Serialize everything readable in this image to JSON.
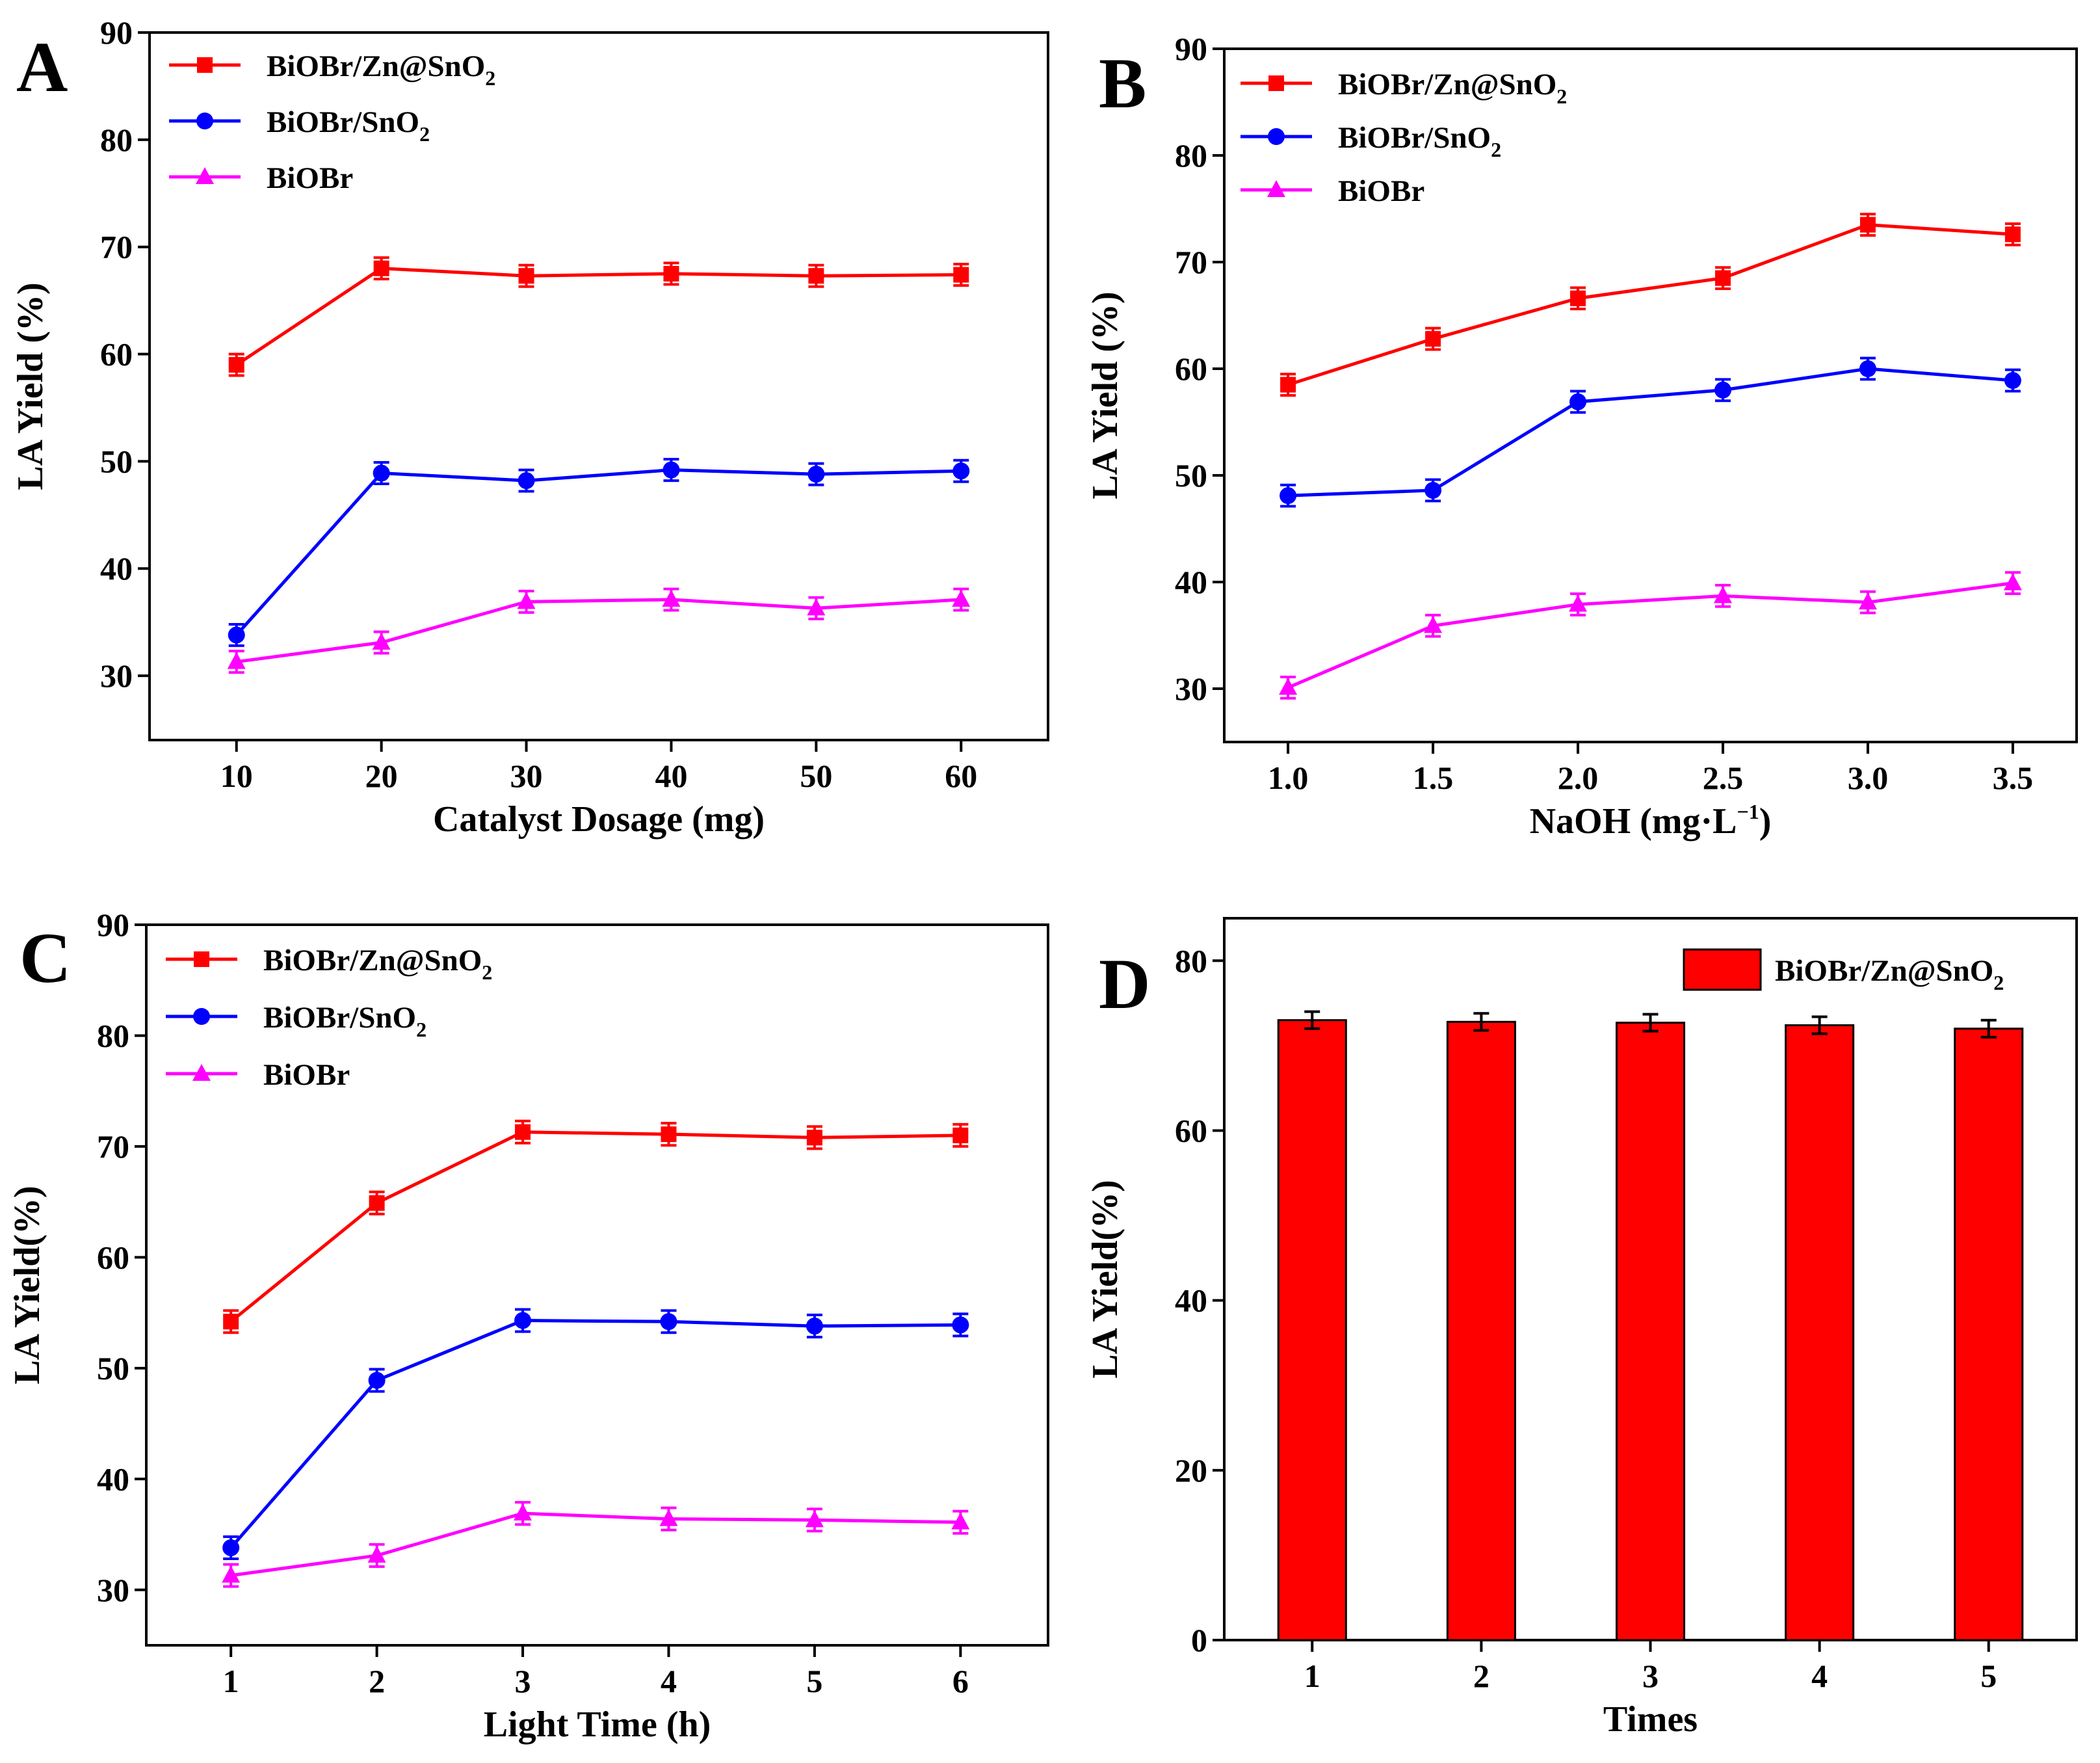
{
  "colors": {
    "red": "#ff0000",
    "darkred": "#cc0000",
    "blue": "#0000ff",
    "magenta": "#ff00ff",
    "black": "#000000"
  },
  "chart_data": [
    {
      "panel": "A",
      "type": "line",
      "xlabel": "Catalyst Dosage (mg)",
      "ylabel": "LA Yield (%)",
      "x": [
        10,
        20,
        30,
        40,
        50,
        60
      ],
      "x_ticks": [
        "10",
        "20",
        "30",
        "40",
        "50",
        "60"
      ],
      "xlim": [
        4,
        66
      ],
      "ylim": [
        24,
        90
      ],
      "y_ticks": [
        30,
        40,
        50,
        60,
        70,
        80,
        90
      ],
      "legend_position": "top-left",
      "series": [
        {
          "name": "BiOBr/Zn@SnO",
          "subscript": "2",
          "color": "#ff0000",
          "marker": "square",
          "values": [
            59,
            68,
            67.3,
            67.5,
            67.3,
            67.4
          ],
          "errors": [
            1,
            1,
            1,
            1,
            1,
            1
          ]
        },
        {
          "name": "BiOBr/SnO",
          "subscript": "2",
          "color": "#0000ff",
          "marker": "circle",
          "values": [
            33.8,
            48.9,
            48.2,
            49.2,
            48.8,
            49.1
          ],
          "errors": [
            1,
            1,
            1,
            1,
            1,
            1
          ]
        },
        {
          "name": "BiOBr",
          "subscript": "",
          "color": "#ff00ff",
          "marker": "triangle",
          "values": [
            31.3,
            33.1,
            36.9,
            37.1,
            36.3,
            37.1
          ],
          "errors": [
            1,
            1,
            1,
            1,
            1,
            1
          ]
        }
      ]
    },
    {
      "panel": "B",
      "type": "line",
      "xlabel": "NaOH (mg·L",
      "xlabel_sup": "−1",
      "xlabel_tail": ")",
      "ylabel": "LA Yield (%)",
      "x": [
        1.0,
        1.5,
        2.0,
        2.5,
        3.0,
        3.5
      ],
      "x_ticks": [
        "1.0",
        "1.5",
        "2.0",
        "2.5",
        "3.0",
        "3.5"
      ],
      "xlim": [
        0.78,
        3.72
      ],
      "ylim": [
        25,
        90
      ],
      "y_ticks": [
        30,
        40,
        50,
        60,
        70,
        80,
        90
      ],
      "legend_position": "top-left",
      "series": [
        {
          "name": "BiOBr/Zn@SnO",
          "subscript": "2",
          "color": "#ff0000",
          "marker": "square",
          "values": [
            58.5,
            62.8,
            66.6,
            68.5,
            73.5,
            72.6
          ],
          "errors": [
            1,
            1,
            1,
            1,
            1,
            1
          ]
        },
        {
          "name": "BiOBr/SnO",
          "subscript": "2",
          "color": "#0000ff",
          "marker": "circle",
          "values": [
            48.1,
            48.6,
            56.9,
            58,
            60,
            58.9
          ],
          "errors": [
            1,
            1,
            1,
            1,
            1,
            1
          ]
        },
        {
          "name": "BiOBr",
          "subscript": "",
          "color": "#ff00ff",
          "marker": "triangle",
          "values": [
            30.1,
            35.9,
            37.9,
            38.7,
            38.1,
            39.9
          ],
          "errors": [
            1,
            1,
            1,
            1,
            1,
            1
          ]
        }
      ]
    },
    {
      "panel": "C",
      "type": "line",
      "xlabel": "Light Time (h)",
      "ylabel": "LA Yield(%)",
      "x": [
        1,
        2,
        3,
        4,
        5,
        6
      ],
      "x_ticks": [
        "1",
        "2",
        "3",
        "4",
        "5",
        "6"
      ],
      "xlim": [
        0.42,
        6.6
      ],
      "ylim": [
        25,
        90
      ],
      "y_ticks": [
        30,
        40,
        50,
        60,
        70,
        80,
        90
      ],
      "legend_position": "top-left",
      "series": [
        {
          "name": "BiOBr/Zn@SnO",
          "subscript": "2",
          "color": "#ff0000",
          "marker": "square",
          "values": [
            54.2,
            64.9,
            71.3,
            71.1,
            70.8,
            71.0
          ],
          "errors": [
            1,
            1,
            1,
            1,
            1,
            1
          ]
        },
        {
          "name": "BiOBr/SnO",
          "subscript": "2",
          "color": "#0000ff",
          "marker": "circle",
          "values": [
            33.8,
            48.9,
            54.3,
            54.2,
            53.8,
            53.9
          ],
          "errors": [
            1,
            1,
            1,
            1,
            1,
            1
          ]
        },
        {
          "name": "BiOBr",
          "subscript": "",
          "color": "#ff00ff",
          "marker": "triangle",
          "values": [
            31.3,
            33.1,
            36.9,
            36.4,
            36.3,
            36.1
          ],
          "errors": [
            1,
            1,
            1,
            1,
            1,
            1
          ]
        }
      ]
    },
    {
      "panel": "D",
      "type": "bar",
      "xlabel": "Times",
      "ylabel": "LA Yield(%)",
      "categories": [
        "1",
        "2",
        "3",
        "4",
        "5"
      ],
      "xlim": [
        0.48,
        5.52
      ],
      "ylim": [
        0,
        85
      ],
      "y_ticks": [
        0,
        20,
        40,
        60,
        80
      ],
      "legend_position": "top-right",
      "series": [
        {
          "name": "BiOBr/Zn@SnO",
          "subscript": "2",
          "color": "#ff0000",
          "values": [
            73,
            72.8,
            72.7,
            72.4,
            72
          ],
          "errors": [
            1,
            1,
            1,
            1,
            1
          ]
        }
      ]
    }
  ]
}
